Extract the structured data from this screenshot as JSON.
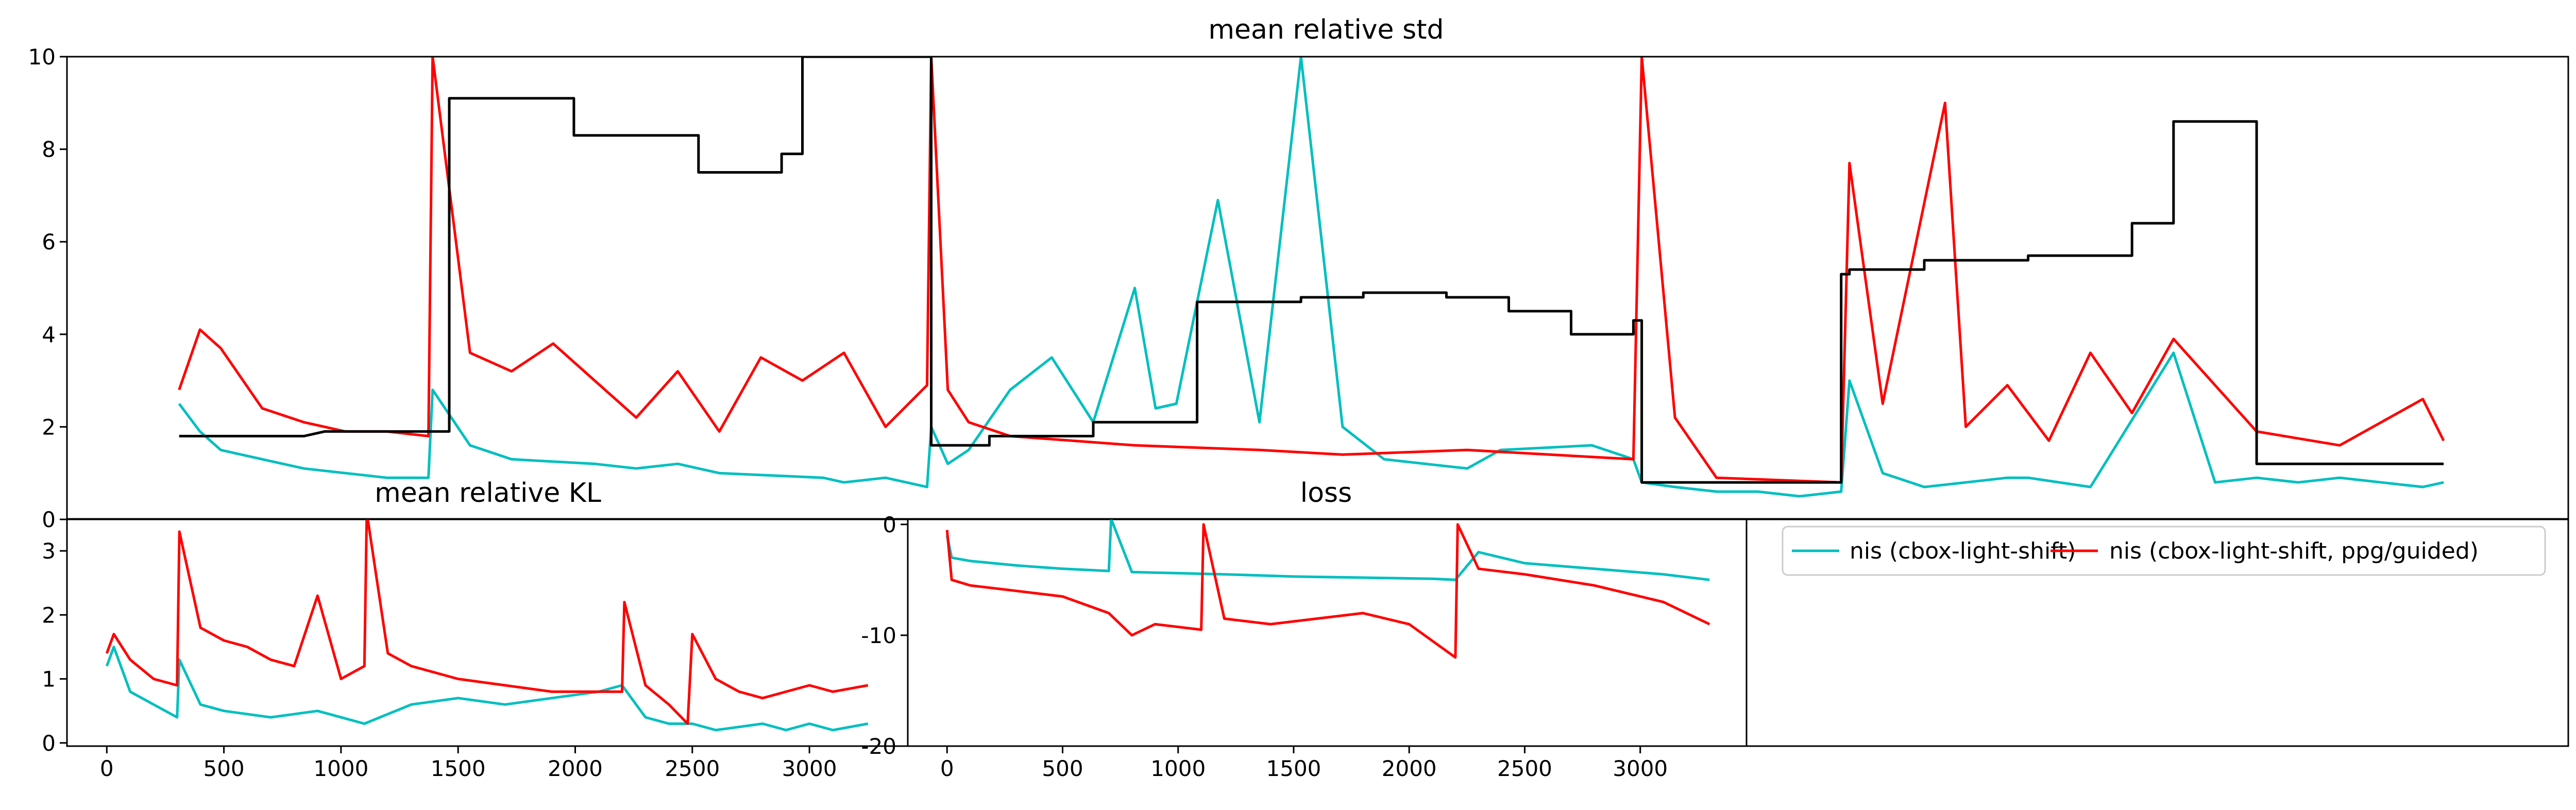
{
  "colors": {
    "cyan": "#00bfbf",
    "red": "#ff0000",
    "black": "#000000"
  },
  "legend": {
    "items": [
      {
        "label": "nis (cbox-light-shift)",
        "color": "#00bfbf"
      },
      {
        "label": "nis (cbox-light-shift, ppg/guided)",
        "color": "#ff0000"
      }
    ]
  },
  "chart_data": [
    {
      "type": "line",
      "title": "mean relative std",
      "xlabel": "",
      "ylabel": "",
      "xlim": [
        -570,
        5450
      ],
      "ylim": [
        0,
        10
      ],
      "yticks": [
        0,
        2,
        4,
        6,
        8,
        10
      ],
      "xticks": [],
      "series": [
        {
          "name": "nis (cbox-light-shift)",
          "color": "#00bfbf",
          "x": [
            -300,
            -250,
            -200,
            -100,
            0,
            100,
            200,
            300,
            310,
            400,
            500,
            700,
            800,
            900,
            1000,
            1250,
            1300,
            1400,
            1500,
            1510,
            1550,
            1600,
            1700,
            1800,
            1900,
            2000,
            2050,
            2100,
            2200,
            2300,
            2400,
            2500,
            2600,
            2800,
            2880,
            3100,
            3200,
            3220,
            3300,
            3400,
            3500,
            3600,
            3700,
            3720,
            3800,
            3900,
            4000,
            4100,
            4150,
            4300,
            4500,
            4600,
            4700,
            4800,
            4900,
            5000,
            5100,
            5150
          ],
          "y": [
            2.5,
            1.9,
            1.5,
            1.3,
            1.1,
            1.0,
            0.9,
            0.9,
            2.8,
            1.6,
            1.3,
            1.2,
            1.1,
            1.2,
            1.0,
            0.9,
            0.8,
            0.9,
            0.7,
            2.0,
            1.2,
            1.5,
            2.8,
            3.5,
            2.1,
            5.0,
            2.4,
            2.5,
            6.9,
            2.1,
            10.0,
            2.0,
            1.3,
            1.1,
            1.5,
            1.6,
            1.3,
            0.8,
            0.7,
            0.6,
            0.6,
            0.5,
            0.6,
            3.0,
            1.0,
            0.7,
            0.8,
            0.9,
            0.9,
            0.7,
            3.6,
            0.8,
            0.9,
            0.8,
            0.9,
            0.8,
            0.7,
            0.8
          ]
        },
        {
          "name": "nis (cbox-light-shift, ppg/guided)",
          "color": "#ff0000",
          "x": [
            -300,
            -250,
            -200,
            -100,
            0,
            100,
            200,
            300,
            310,
            400,
            500,
            600,
            700,
            800,
            900,
            1000,
            1100,
            1200,
            1300,
            1400,
            1500,
            1510,
            1550,
            1600,
            1700,
            2000,
            2300,
            2500,
            2800,
            3200,
            3220,
            3300,
            3400,
            3700,
            3720,
            3800,
            3950,
            4000,
            4100,
            4200,
            4300,
            4400,
            4500,
            4700,
            4900,
            5100,
            5150
          ],
          "y": [
            2.8,
            4.1,
            3.7,
            2.4,
            2.1,
            1.9,
            1.9,
            1.8,
            10.0,
            3.6,
            3.2,
            3.8,
            3.0,
            2.2,
            3.2,
            1.9,
            3.5,
            3.0,
            3.6,
            2.0,
            2.9,
            10.0,
            2.8,
            2.1,
            1.8,
            1.6,
            1.5,
            1.4,
            1.5,
            1.3,
            10.0,
            2.2,
            0.9,
            0.8,
            7.7,
            2.5,
            9.0,
            2.0,
            2.9,
            1.7,
            3.6,
            2.3,
            3.9,
            1.9,
            1.6,
            2.6,
            1.7
          ]
        },
        {
          "name": "",
          "color": "#000000",
          "step": true,
          "x": [
            -300,
            0,
            50,
            350,
            350,
            650,
            650,
            950,
            950,
            1150,
            1150,
            1200,
            1200,
            1510,
            1510,
            1650,
            1650,
            1900,
            1900,
            2150,
            2150,
            2400,
            2400,
            2550,
            2550,
            2750,
            2750,
            2900,
            2900,
            3050,
            3050,
            3200,
            3200,
            3220,
            3220,
            3700,
            3700,
            3720,
            3720,
            3900,
            3900,
            4150,
            4150,
            4400,
            4400,
            4500,
            4500,
            4700,
            4700,
            4850,
            4850,
            5150
          ],
          "y": [
            1.8,
            1.8,
            1.9,
            1.9,
            9.1,
            9.1,
            8.3,
            8.3,
            7.5,
            7.5,
            7.9,
            7.9,
            10.0,
            10.0,
            1.6,
            1.6,
            1.8,
            1.8,
            2.1,
            2.1,
            4.7,
            4.7,
            4.8,
            4.8,
            4.9,
            4.9,
            4.8,
            4.8,
            4.5,
            4.5,
            4.0,
            4.0,
            4.3,
            4.3,
            0.8,
            0.8,
            5.3,
            5.3,
            5.4,
            5.4,
            5.6,
            5.6,
            5.7,
            5.7,
            6.4,
            6.4,
            8.6,
            8.6,
            1.2,
            1.2,
            1.2,
            1.2
          ]
        }
      ]
    },
    {
      "type": "line",
      "title": "mean relative KL",
      "xlabel": "",
      "ylabel": "",
      "xlim": [
        -170,
        3420
      ],
      "ylim": [
        -0.05,
        3.5
      ],
      "yticks": [
        0,
        1,
        2,
        3
      ],
      "xticks": [
        0,
        500,
        1000,
        1500,
        2000,
        2500,
        3000
      ],
      "series": [
        {
          "name": "nis (cbox-light-shift)",
          "color": "#00bfbf",
          "x": [
            0,
            30,
            100,
            200,
            300,
            310,
            400,
            500,
            700,
            900,
            1100,
            1300,
            1500,
            1700,
            1900,
            2100,
            2200,
            2300,
            2400,
            2500,
            2600,
            2800,
            2900,
            3000,
            3100,
            3250
          ],
          "y": [
            1.2,
            1.5,
            0.8,
            0.6,
            0.4,
            1.3,
            0.6,
            0.5,
            0.4,
            0.5,
            0.3,
            0.6,
            0.7,
            0.6,
            0.7,
            0.8,
            0.9,
            0.4,
            0.3,
            0.3,
            0.2,
            0.3,
            0.2,
            0.3,
            0.2,
            0.3
          ]
        },
        {
          "name": "nis (cbox-light-shift, ppg/guided)",
          "color": "#ff0000",
          "x": [
            0,
            30,
            100,
            200,
            300,
            310,
            400,
            500,
            600,
            700,
            800,
            900,
            1000,
            1100,
            1110,
            1200,
            1300,
            1500,
            1700,
            1900,
            2100,
            2200,
            2210,
            2300,
            2400,
            2480,
            2500,
            2600,
            2700,
            2800,
            2900,
            3000,
            3100,
            3250
          ],
          "y": [
            1.4,
            1.7,
            1.3,
            1.0,
            0.9,
            3.3,
            1.8,
            1.6,
            1.5,
            1.3,
            1.2,
            2.3,
            1.0,
            1.2,
            3.6,
            1.4,
            1.2,
            1.0,
            0.9,
            0.8,
            0.8,
            0.8,
            2.2,
            0.9,
            0.6,
            0.3,
            1.7,
            1.0,
            0.8,
            0.7,
            0.8,
            0.9,
            0.8,
            0.9
          ]
        }
      ]
    },
    {
      "type": "line",
      "title": "loss",
      "xlabel": "",
      "ylabel": "",
      "xlim": [
        -170,
        3460
      ],
      "ylim": [
        -20,
        0.5
      ],
      "yticks": [
        0,
        -10,
        -20
      ],
      "xticks": [
        0,
        500,
        1000,
        1500,
        2000,
        2500,
        3000
      ],
      "series": [
        {
          "name": "nis (cbox-light-shift)",
          "color": "#00bfbf",
          "x": [
            0,
            20,
            100,
            300,
            500,
            700,
            710,
            800,
            1000,
            1200,
            1500,
            1800,
            2100,
            2200,
            2300,
            2500,
            2800,
            3100,
            3300
          ],
          "y": [
            -1.0,
            -3.0,
            -3.3,
            -3.7,
            -4.0,
            -4.2,
            0.5,
            -4.3,
            -4.4,
            -4.5,
            -4.7,
            -4.8,
            -4.9,
            -5.0,
            -2.5,
            -3.5,
            -4.0,
            -4.5,
            -5.0
          ]
        },
        {
          "name": "nis (cbox-light-shift, ppg/guided)",
          "color": "#ff0000",
          "x": [
            0,
            20,
            100,
            300,
            500,
            700,
            800,
            900,
            1100,
            1110,
            1200,
            1400,
            1600,
            1800,
            2000,
            2200,
            2210,
            2300,
            2500,
            2800,
            3100,
            3300
          ],
          "y": [
            -0.5,
            -5.0,
            -5.5,
            -6.0,
            -6.5,
            -8.0,
            -10.0,
            -9.0,
            -9.5,
            0.0,
            -8.5,
            -9.0,
            -8.5,
            -8.0,
            -9.0,
            -12.0,
            0.0,
            -4.0,
            -4.5,
            -5.5,
            -7.0,
            -9.0
          ]
        }
      ]
    }
  ]
}
